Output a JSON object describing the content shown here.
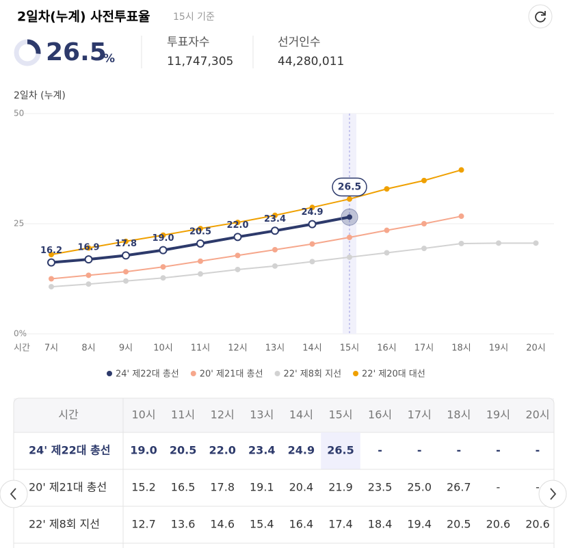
{
  "header": {
    "title": "2일차(누계) 사전투표율",
    "basis": "15시 기준"
  },
  "summary": {
    "turnout": 26.5,
    "unit": "%",
    "voters_label": "투표자수",
    "voters": "11,747,305",
    "electors_label": "선거인수",
    "electors": "44,280,011"
  },
  "chart_data": {
    "type": "line",
    "ylabel": "2일차 (누계)",
    "xlabel": "시간",
    "categories": [
      "7시",
      "8시",
      "9시",
      "10시",
      "11시",
      "12시",
      "13시",
      "14시",
      "15시",
      "16시",
      "17시",
      "18시",
      "19시",
      "20시"
    ],
    "ylim": [
      0,
      50
    ],
    "yticks": [
      {
        "value": 0,
        "label": "0%"
      },
      25,
      50
    ],
    "grid": true,
    "series": [
      {
        "name": "24' 제22대 총선",
        "color": "#2d3a6b",
        "values": [
          16.2,
          16.9,
          17.8,
          19,
          20.5,
          22,
          23.4,
          24.9,
          26.5,
          null,
          null,
          null,
          null,
          null
        ],
        "value_labels": [
          "16.2",
          "16.9",
          "17.8",
          "19.0",
          "20.5",
          "22.0",
          "23.4",
          "24.9",
          "26.5",
          null,
          null,
          null,
          null,
          null
        ]
      },
      {
        "name": "20' 제21대 총선",
        "color": "#f6a78c",
        "values": [
          12.5,
          13.3,
          14.1,
          15.2,
          16.5,
          17.8,
          19.1,
          20.4,
          21.9,
          23.5,
          25,
          26.7,
          null,
          null
        ]
      },
      {
        "name": "22' 제8회 지선",
        "color": "#d2d2d2",
        "values": [
          10.7,
          11.3,
          12,
          12.7,
          13.6,
          14.6,
          15.4,
          16.4,
          17.4,
          18.4,
          19.4,
          20.5,
          20.6,
          20.6
        ]
      },
      {
        "name": "22' 제20대 대선",
        "color": "#efa000",
        "values": [
          18,
          19.5,
          21,
          22.4,
          23.9,
          25.3,
          26.9,
          28.7,
          30.6,
          32.9,
          34.8,
          37.2,
          null,
          null
        ]
      }
    ]
  },
  "table": {
    "header": [
      "시간",
      "10시",
      "11시",
      "12시",
      "13시",
      "14시",
      "15시",
      "16시",
      "17시",
      "18시",
      "19시",
      "20시"
    ],
    "rows": [
      [
        "24' 제22대 총선",
        "19.0",
        "20.5",
        "22.0",
        "23.4",
        "24.9",
        "26.5",
        "-",
        "-",
        "-",
        "-",
        "-"
      ],
      [
        "20' 제21대 총선",
        "15.2",
        "16.5",
        "17.8",
        "19.1",
        "20.4",
        "21.9",
        "23.5",
        "25.0",
        "26.7",
        "-",
        "-"
      ],
      [
        "22' 제8회 지선",
        "12.7",
        "13.6",
        "14.6",
        "15.4",
        "16.4",
        "17.4",
        "18.4",
        "19.4",
        "20.5",
        "20.6",
        "20.6"
      ]
    ]
  }
}
